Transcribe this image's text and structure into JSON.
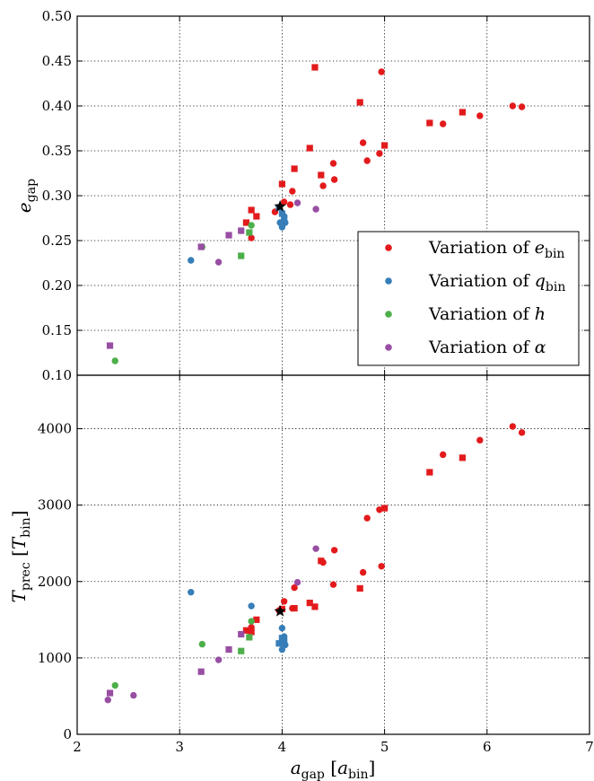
{
  "colors": {
    "e_bin": "#e31a1c",
    "q_bin": "#377eb8",
    "h": "#4daf4a",
    "alpha": "#984ea3",
    "reference": "#000000"
  },
  "chart_data": [
    {
      "type": "scatter",
      "xlim": [
        2,
        7
      ],
      "ylim": [
        0.1,
        0.5
      ],
      "grid": true,
      "xlabel": "",
      "ylabel_main": "e",
      "ylabel_sub": "gap",
      "x_ticks": [
        2,
        3,
        4,
        5,
        6,
        7
      ],
      "y_ticks": [
        0.1,
        0.15,
        0.2,
        0.25,
        0.3,
        0.35,
        0.4,
        0.45,
        0.5
      ],
      "y_tick_labels": [
        "0.10",
        "0.15",
        "0.20",
        "0.25",
        "0.30",
        "0.35",
        "0.40",
        "0.45",
        "0.50"
      ],
      "legend": {
        "placement": "lower-right",
        "entries": [
          {
            "prefix": "Variation of ",
            "sym": "e",
            "sub": "bin",
            "color_key": "e_bin"
          },
          {
            "prefix": "Variation of ",
            "sym": "q",
            "sub": "bin",
            "color_key": "q_bin"
          },
          {
            "prefix": "Variation of ",
            "sym": "h",
            "sub": "",
            "color_key": "h"
          },
          {
            "prefix": "Variation of ",
            "sym": "α",
            "sub": "",
            "color_key": "alpha"
          }
        ]
      },
      "series": [
        {
          "color_key": "e_bin",
          "marker": "circle",
          "points": [
            [
              3.7,
              0.253
            ],
            [
              3.93,
              0.282
            ],
            [
              3.97,
              0.287
            ],
            [
              4.02,
              0.293
            ],
            [
              4.08,
              0.29
            ],
            [
              4.1,
              0.305
            ],
            [
              4.4,
              0.311
            ],
            [
              4.5,
              0.336
            ],
            [
              4.51,
              0.318
            ],
            [
              4.79,
              0.359
            ],
            [
              4.83,
              0.339
            ],
            [
              4.95,
              0.347
            ],
            [
              4.97,
              0.438
            ],
            [
              5.57,
              0.38
            ],
            [
              5.93,
              0.389
            ],
            [
              6.25,
              0.4
            ],
            [
              6.34,
              0.399
            ]
          ]
        },
        {
          "color_key": "e_bin",
          "marker": "square",
          "points": [
            [
              3.65,
              0.27
            ],
            [
              3.7,
              0.284
            ],
            [
              3.75,
              0.277
            ],
            [
              4.0,
              0.313
            ],
            [
              4.12,
              0.33
            ],
            [
              4.27,
              0.353
            ],
            [
              4.32,
              0.443
            ],
            [
              4.38,
              0.323
            ],
            [
              4.76,
              0.404
            ],
            [
              5.0,
              0.356
            ],
            [
              5.44,
              0.381
            ],
            [
              5.76,
              0.393
            ]
          ]
        },
        {
          "color_key": "q_bin",
          "marker": "circle",
          "points": [
            [
              3.11,
              0.228
            ],
            [
              3.98,
              0.27
            ],
            [
              4.0,
              0.265
            ],
            [
              4.0,
              0.267
            ],
            [
              4.02,
              0.277
            ],
            [
              4.03,
              0.27
            ]
          ]
        },
        {
          "color_key": "q_bin",
          "marker": "square",
          "points": [
            [
              3.97,
              0.287
            ],
            [
              4.0,
              0.28
            ],
            [
              4.02,
              0.275
            ]
          ]
        },
        {
          "color_key": "h",
          "marker": "circle",
          "points": [
            [
              2.37,
              0.116
            ],
            [
              3.22,
              0.243
            ],
            [
              3.7,
              0.267
            ]
          ]
        },
        {
          "color_key": "h",
          "marker": "square",
          "points": [
            [
              3.6,
              0.233
            ],
            [
              3.68,
              0.259
            ]
          ]
        },
        {
          "color_key": "alpha",
          "marker": "circle",
          "points": [
            [
              3.38,
              0.226
            ],
            [
              4.15,
              0.292
            ],
            [
              4.33,
              0.285
            ]
          ]
        },
        {
          "color_key": "alpha",
          "marker": "square",
          "points": [
            [
              2.32,
              0.133
            ],
            [
              3.21,
              0.243
            ],
            [
              3.48,
              0.256
            ],
            [
              3.6,
              0.261
            ]
          ]
        },
        {
          "color_key": "reference",
          "marker": "star",
          "points": [
            [
              3.98,
              0.288
            ]
          ]
        }
      ]
    },
    {
      "type": "scatter",
      "xlim": [
        2,
        7
      ],
      "ylim": [
        0,
        4700
      ],
      "grid": true,
      "xlabel_main": "a",
      "xlabel_sub": "gap",
      "xlabel_unit_main": "a",
      "xlabel_unit_sub": "bin",
      "ylabel_main": "T",
      "ylabel_sub": "prec",
      "ylabel_unit_main": "T",
      "ylabel_unit_sub": "bin",
      "x_ticks": [
        2,
        3,
        4,
        5,
        6,
        7
      ],
      "x_tick_labels": [
        "2",
        "3",
        "4",
        "5",
        "6",
        "7"
      ],
      "y_ticks": [
        0,
        1000,
        2000,
        3000,
        4000
      ],
      "y_tick_labels": [
        "0",
        "1000",
        "2000",
        "3000",
        "4000"
      ],
      "series": [
        {
          "color_key": "e_bin",
          "marker": "circle",
          "points": [
            [
              3.7,
              1400
            ],
            [
              3.97,
              1620
            ],
            [
              4.02,
              1740
            ],
            [
              4.1,
              1650
            ],
            [
              4.12,
              1920
            ],
            [
              4.4,
              2250
            ],
            [
              4.5,
              1960
            ],
            [
              4.51,
              2410
            ],
            [
              4.79,
              2120
            ],
            [
              4.83,
              2830
            ],
            [
              4.95,
              2940
            ],
            [
              4.97,
              2200
            ],
            [
              5.57,
              3660
            ],
            [
              5.93,
              3850
            ],
            [
              6.25,
              4030
            ],
            [
              6.34,
              3950
            ]
          ]
        },
        {
          "color_key": "e_bin",
          "marker": "square",
          "points": [
            [
              3.65,
              1360
            ],
            [
              3.7,
              1340
            ],
            [
              3.75,
              1500
            ],
            [
              4.0,
              1640
            ],
            [
              4.12,
              1650
            ],
            [
              4.27,
              1720
            ],
            [
              4.32,
              1670
            ],
            [
              4.38,
              2270
            ],
            [
              4.76,
              1910
            ],
            [
              5.0,
              2960
            ],
            [
              5.44,
              3430
            ],
            [
              5.76,
              3620
            ]
          ]
        },
        {
          "color_key": "q_bin",
          "marker": "circle",
          "points": [
            [
              3.11,
              1860
            ],
            [
              3.7,
              1680
            ],
            [
              4.0,
              1390
            ],
            [
              4.0,
              1110
            ],
            [
              4.02,
              1280
            ],
            [
              4.03,
              1170
            ]
          ]
        },
        {
          "color_key": "q_bin",
          "marker": "square",
          "points": [
            [
              3.97,
              1190
            ],
            [
              4.0,
              1260
            ],
            [
              4.02,
              1220
            ]
          ]
        },
        {
          "color_key": "h",
          "marker": "circle",
          "points": [
            [
              2.37,
              640
            ],
            [
              3.22,
              1180
            ],
            [
              3.7,
              1480
            ]
          ]
        },
        {
          "color_key": "h",
          "marker": "square",
          "points": [
            [
              3.6,
              1090
            ],
            [
              3.68,
              1270
            ]
          ]
        },
        {
          "color_key": "alpha",
          "marker": "circle",
          "points": [
            [
              2.3,
              450
            ],
            [
              2.55,
              510
            ],
            [
              3.38,
              975
            ],
            [
              4.15,
              1990
            ],
            [
              4.33,
              2430
            ]
          ]
        },
        {
          "color_key": "alpha",
          "marker": "square",
          "points": [
            [
              2.32,
              540
            ],
            [
              3.21,
              820
            ],
            [
              3.48,
              1110
            ],
            [
              3.6,
              1310
            ]
          ]
        },
        {
          "color_key": "reference",
          "marker": "star",
          "points": [
            [
              3.98,
              1610
            ]
          ]
        }
      ]
    }
  ]
}
